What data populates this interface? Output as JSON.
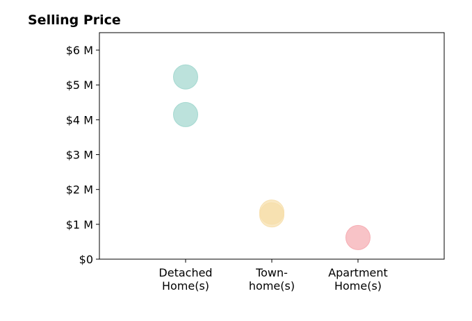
{
  "chart_data": {
    "type": "scatter",
    "title": "Selling Price",
    "xlabel": "",
    "ylabel": "",
    "categories": [
      [
        "Detached",
        "Home(s)"
      ],
      [
        "Town-",
        "home(s)"
      ],
      [
        "Apartment",
        "Home(s)"
      ]
    ],
    "y_ticks": [
      {
        "value": 0,
        "label": "$0"
      },
      {
        "value": 1000000,
        "label": "$1 M"
      },
      {
        "value": 2000000,
        "label": "$2 M"
      },
      {
        "value": 3000000,
        "label": "$3 M"
      },
      {
        "value": 4000000,
        "label": "$4 M"
      },
      {
        "value": 5000000,
        "label": "$5 M"
      },
      {
        "value": 6000000,
        "label": "$6 M"
      }
    ],
    "xlim": [
      -1,
      3
    ],
    "ylim": [
      0,
      6500000
    ],
    "grid": false,
    "legend": "none",
    "points": [
      {
        "category": 0,
        "value": 5230000,
        "color": "#9fd6cd"
      },
      {
        "category": 0,
        "value": 4150000,
        "color": "#9fd6cd"
      },
      {
        "category": 1,
        "value": 1350000,
        "color": "#f6deaa"
      },
      {
        "category": 1,
        "value": 1270000,
        "color": "#f6deaa"
      },
      {
        "category": 2,
        "value": 620000,
        "color": "#f5a9af"
      }
    ],
    "marker_opacity": 0.7
  }
}
